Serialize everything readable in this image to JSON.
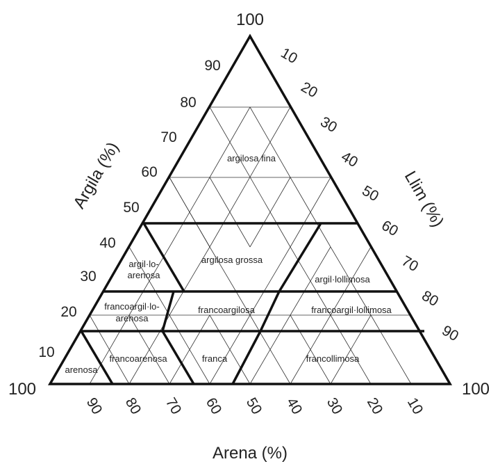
{
  "diagram": {
    "axes": {
      "clay": "Argila (%)",
      "silt": "Llim (%)",
      "sand": "Arena (%)"
    },
    "corner_labels": {
      "top": "100",
      "left": "100",
      "right": "100"
    },
    "clay_ticks": [
      "90",
      "80",
      "70",
      "60",
      "50",
      "40",
      "30",
      "20",
      "10"
    ],
    "silt_ticks": [
      "10",
      "20",
      "30",
      "40",
      "50",
      "60",
      "70",
      "80",
      "90"
    ],
    "sand_ticks": [
      "90",
      "80",
      "70",
      "60",
      "50",
      "40",
      "30",
      "20",
      "10"
    ],
    "classes": {
      "argilosa_fina": "argilosa fina",
      "argilosa_grossa": "argilosa grossa",
      "argil_lo_arenosa_1": "argil·lo-",
      "argil_lo_arenosa_2": "arenosa",
      "argil_lollimosa": "argil·lollimosa",
      "francoargil_lo_arenosa_1": "francoargil·lo-",
      "francoargil_lo_arenosa_2": "arenosa",
      "francoargilosa": "francoargilosa",
      "francoargil_lollimosa": "francoargil·lollimosa",
      "arenosa": "arenosa",
      "francoarenosa": "francoarenosa",
      "franca": "franca",
      "francollimosa": "francollimosa"
    }
  }
}
